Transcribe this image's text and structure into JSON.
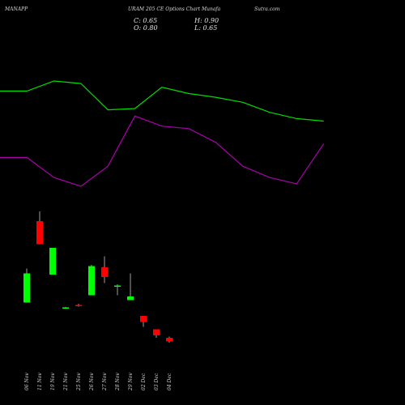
{
  "header": {
    "symbol": "MANAPP",
    "title": "URAM 205 CE Options Chart Munafa",
    "site": "Sutra.com"
  },
  "ohlc": {
    "close": "C: 0.65",
    "high": "H: 0.90",
    "open": "O: 0.80",
    "low": "L: 0.65"
  },
  "colors": {
    "up": "#00ff00",
    "down": "#ff0000",
    "line1": "#00dd00",
    "line2": "#aa00aa",
    "background": "#000000"
  },
  "chart_data": [
    {
      "type": "line",
      "series": [
        {
          "values": [
            0.7,
            0.7,
            0.78,
            0.76,
            0.55,
            0.56,
            0.73,
            0.68,
            0.65,
            0.61,
            0.53,
            0.48,
            0.46
          ]
        },
        {
          "values": [
            0.17,
            0.17,
            0.01,
            -0.06,
            0.1,
            0.5,
            0.42,
            0.4,
            0.29,
            0.1,
            0.01,
            -0.04,
            0.28
          ]
        }
      ]
    },
    {
      "type": "candlestick",
      "categories": [
        "06 Nov",
        "11 Nov",
        "19 Nov",
        "21 Nov",
        "25 Nov",
        "26 Nov",
        "27 Nov",
        "28 Nov",
        "29 Nov",
        "02 Dec",
        "03 Dec",
        "04 Dec"
      ],
      "candles": [
        {
          "open": 2.55,
          "high": 3.95,
          "low": 2.55,
          "close": 3.75
        },
        {
          "open": 5.9,
          "high": 6.3,
          "low": 4.95,
          "close": 4.95
        },
        {
          "open": 3.7,
          "high": 4.8,
          "low": 3.7,
          "close": 4.8
        },
        {
          "open": 2.33,
          "high": 2.37,
          "low": 2.29,
          "close": 2.35
        },
        {
          "open": 2.45,
          "high": 2.5,
          "low": 2.38,
          "close": 2.4
        },
        {
          "open": 2.85,
          "high": 4.1,
          "low": 2.85,
          "close": 4.05
        },
        {
          "open": 4.0,
          "high": 4.45,
          "low": 3.35,
          "close": 3.6
        },
        {
          "open": 3.25,
          "high": 3.3,
          "low": 2.85,
          "close": 3.25
        },
        {
          "open": 2.65,
          "high": 3.75,
          "low": 2.65,
          "close": 2.8
        },
        {
          "open": 2.0,
          "high": 2.0,
          "low": 1.55,
          "close": 1.75
        },
        {
          "open": 1.45,
          "high": 1.45,
          "low": 1.1,
          "close": 1.2
        },
        {
          "open": 1.1,
          "high": 1.15,
          "low": 0.9,
          "close": 0.95
        }
      ]
    }
  ]
}
